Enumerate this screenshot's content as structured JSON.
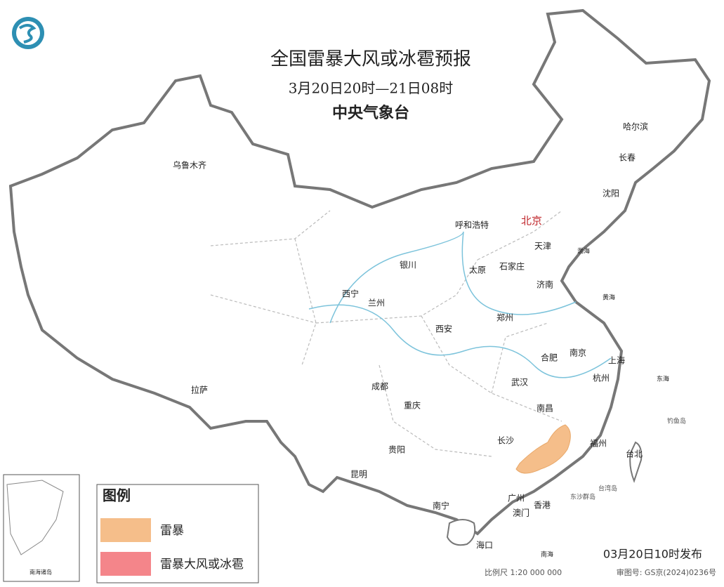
{
  "header": {
    "title": "全国雷暴大风或冰雹预报",
    "period": "3月20日20时—21日08时",
    "issuer": "中央气象台"
  },
  "cities": [
    "乌鲁木齐",
    "哈尔滨",
    "长春",
    "沈阳",
    "呼和浩特",
    "北京",
    "天津",
    "银川",
    "太原",
    "石家庄",
    "济南",
    "西宁",
    "兰州",
    "郑州",
    "西安",
    "合肥",
    "南京",
    "上海",
    "拉萨",
    "成都",
    "武汉",
    "杭州",
    "重庆",
    "南昌",
    "长沙",
    "福州",
    "台北",
    "贵阳",
    "昆明",
    "南宁",
    "广州",
    "香港",
    "澳门",
    "海口"
  ],
  "seas": [
    "渤海",
    "黄海",
    "东海",
    "南海"
  ],
  "islands": [
    "台湾岛",
    "钓鱼岛",
    "东沙群岛"
  ],
  "legend": {
    "title": "图例",
    "items": [
      "雷暴",
      "雷暴大风或冰雹"
    ]
  },
  "inset": {
    "title": "南海诸岛"
  },
  "footer": {
    "published": "03月20日10时发布",
    "scale": "比例尺 1:20 000 000",
    "approval": "审图号: GS京(2024)0236号"
  }
}
